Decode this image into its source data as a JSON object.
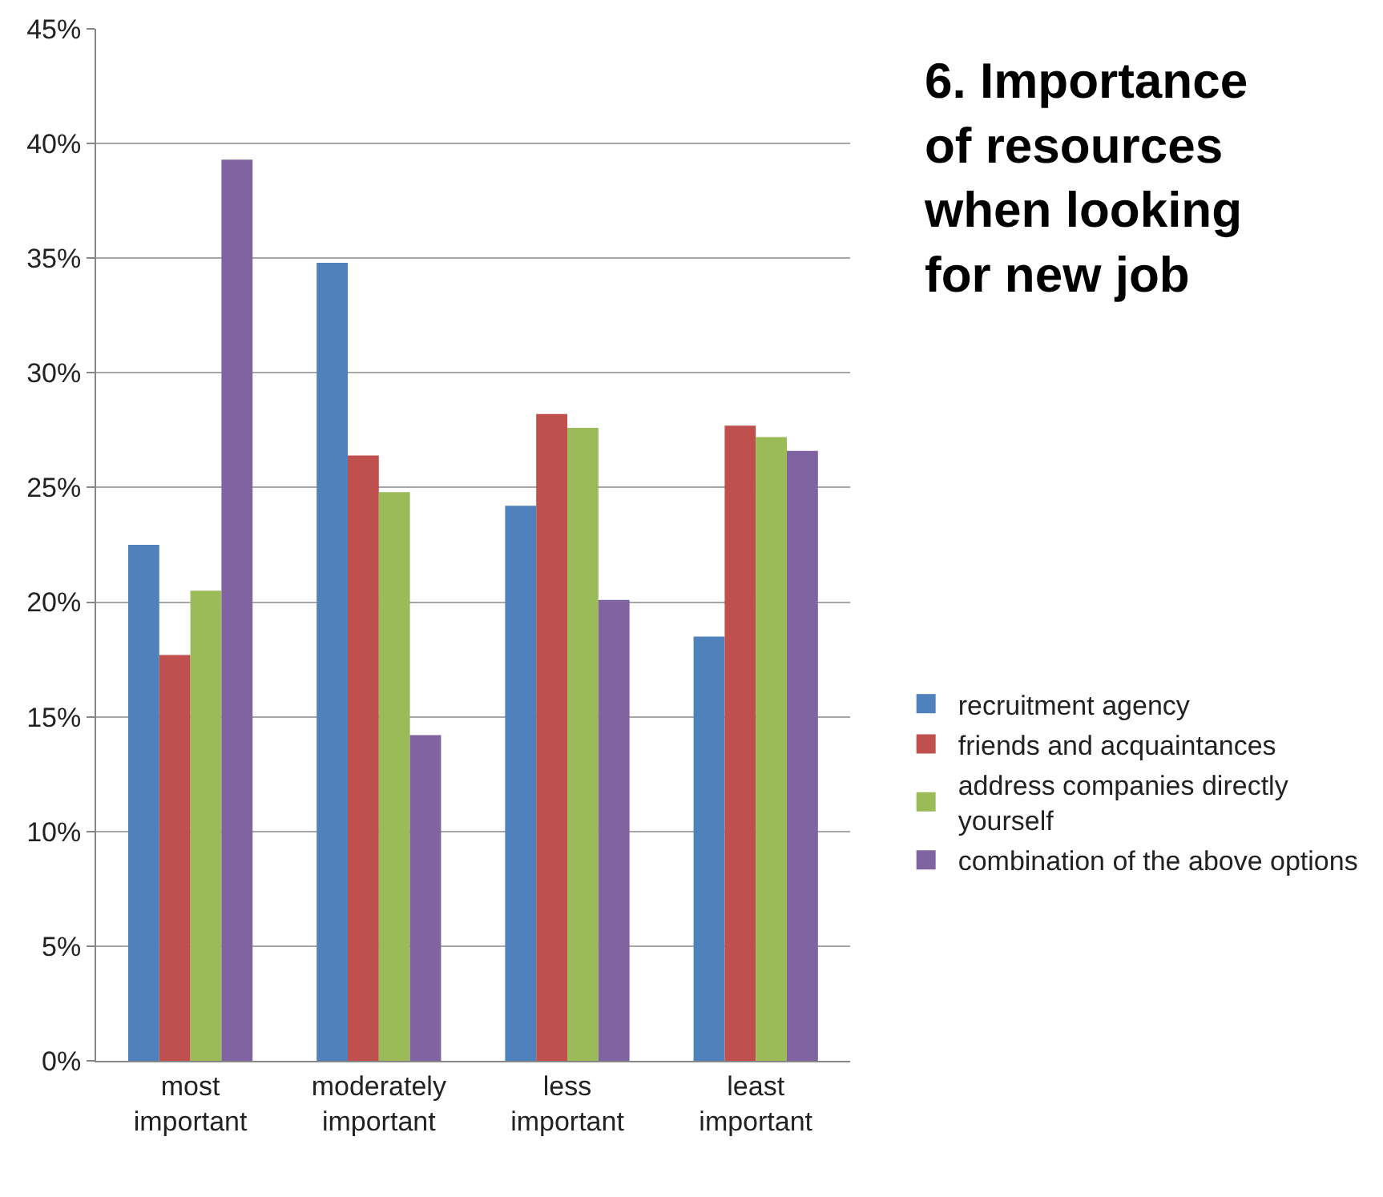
{
  "chart_data": {
    "type": "bar",
    "title": "6. Importance of resources when looking for new job",
    "categories": [
      "most important",
      "moderately important",
      "less important",
      "least important"
    ],
    "series": [
      {
        "name": "recruitment agency",
        "color": "#4f81bd",
        "values": [
          22.5,
          34.8,
          24.2,
          18.5
        ]
      },
      {
        "name": "friends and acquaintances",
        "color": "#c0504d",
        "values": [
          17.7,
          26.4,
          28.2,
          27.7
        ]
      },
      {
        "name": "address companies directly yourself",
        "color": "#9bbb59",
        "values": [
          20.5,
          24.8,
          27.6,
          27.2
        ]
      },
      {
        "name": "combination of the above options",
        "color": "#8064a2",
        "values": [
          39.3,
          14.2,
          20.1,
          26.6
        ]
      }
    ],
    "ylim": [
      0,
      45
    ],
    "yticks": [
      {
        "value": 0,
        "label": "0%"
      },
      {
        "value": 5,
        "label": "5%"
      },
      {
        "value": 10,
        "label": "10%"
      },
      {
        "value": 15,
        "label": "15%"
      },
      {
        "value": 20,
        "label": "20%"
      },
      {
        "value": 25,
        "label": "25%"
      },
      {
        "value": 30,
        "label": "30%"
      },
      {
        "value": 35,
        "label": "35%"
      },
      {
        "value": 40,
        "label": "40%"
      },
      {
        "value": 45,
        "label": "45%"
      }
    ],
    "grid": "y",
    "legend": "right"
  }
}
